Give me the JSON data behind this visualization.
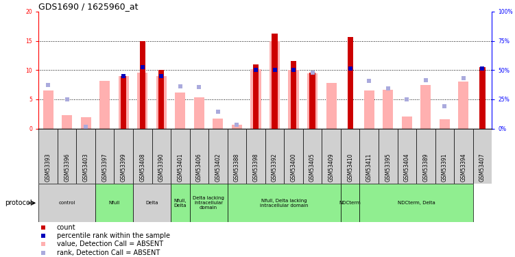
{
  "title": "GDS1690 / 1625960_at",
  "samples": [
    "GSM53393",
    "GSM53396",
    "GSM53403",
    "GSM53397",
    "GSM53399",
    "GSM53408",
    "GSM53390",
    "GSM53401",
    "GSM53406",
    "GSM53402",
    "GSM53388",
    "GSM53398",
    "GSM53392",
    "GSM53400",
    "GSM53405",
    "GSM53409",
    "GSM53410",
    "GSM53411",
    "GSM53395",
    "GSM53404",
    "GSM53389",
    "GSM53391",
    "GSM53394",
    "GSM53407"
  ],
  "count": [
    0,
    0,
    0,
    0,
    9.0,
    15.0,
    10.0,
    0,
    0,
    0,
    0,
    11.0,
    16.2,
    11.5,
    9.5,
    0,
    15.7,
    0,
    0,
    0,
    0,
    0,
    0,
    10.5
  ],
  "percentile_rank": [
    0,
    0,
    0,
    0,
    9.0,
    10.5,
    9.0,
    0,
    0,
    0,
    0,
    10.0,
    10.0,
    10.0,
    0,
    0,
    10.2,
    0,
    0,
    0,
    0,
    0,
    0,
    10.2
  ],
  "value_absent": [
    6.5,
    2.3,
    1.9,
    8.1,
    9.0,
    9.5,
    9.0,
    6.2,
    5.3,
    1.7,
    0.6,
    10.1,
    14.9,
    10.0,
    9.4,
    7.8,
    0,
    6.5,
    6.6,
    2.0,
    7.5,
    1.6,
    8.0,
    0
  ],
  "rank_absent": [
    7.5,
    5.0,
    0.3,
    0,
    0,
    0,
    0,
    7.2,
    7.1,
    2.9,
    0.6,
    0,
    0,
    0,
    9.5,
    0,
    0,
    8.2,
    6.8,
    5.0,
    8.3,
    3.8,
    8.6,
    10.2
  ],
  "groups": [
    {
      "label": "control",
      "start": 0,
      "end": 2,
      "color": "#d0d0d0"
    },
    {
      "label": "Nfull",
      "start": 3,
      "end": 4,
      "color": "#90ee90"
    },
    {
      "label": "Delta",
      "start": 5,
      "end": 6,
      "color": "#d0d0d0"
    },
    {
      "label": "Nfull,\nDelta",
      "start": 7,
      "end": 7,
      "color": "#90ee90"
    },
    {
      "label": "Delta lacking\nintracellular\ndomain",
      "start": 8,
      "end": 9,
      "color": "#90ee90"
    },
    {
      "label": "Nfull, Delta lacking\nintracellular domain",
      "start": 10,
      "end": 15,
      "color": "#90ee90"
    },
    {
      "label": "NDCterm",
      "start": 16,
      "end": 16,
      "color": "#90ee90"
    },
    {
      "label": "NDCterm, Delta",
      "start": 17,
      "end": 22,
      "color": "#90ee90"
    }
  ],
  "ylim_left": [
    0,
    20
  ],
  "ylim_right": [
    0,
    100
  ],
  "yticks_left": [
    0,
    5,
    10,
    15,
    20
  ],
  "yticks_right": [
    0,
    25,
    50,
    75,
    100
  ],
  "count_color": "#cc0000",
  "percentile_color": "#0000bb",
  "value_absent_color": "#ffb0b0",
  "rank_absent_color": "#aaaadd",
  "label_bg_color": "#d0d0d0",
  "title_fontsize": 9,
  "tick_fontsize": 5.5,
  "legend_fontsize": 7
}
